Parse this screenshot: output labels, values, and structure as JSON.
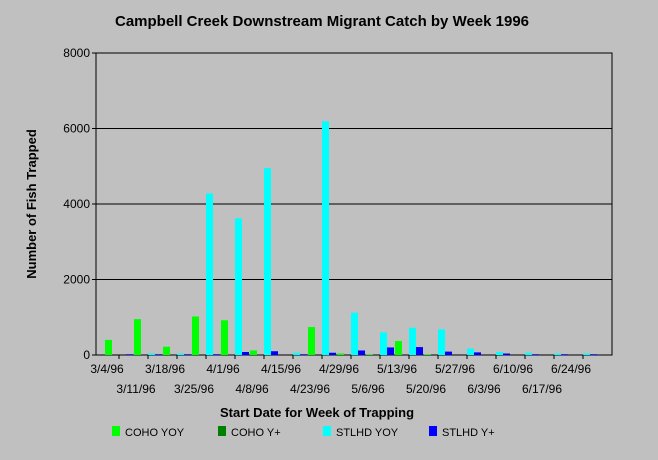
{
  "chart_data": {
    "type": "bar",
    "title": "Campbell Creek Downstream Migrant Catch by Week 1996",
    "xlabel": "Start Date for Week of Trapping",
    "ylabel": "Number of Fish Trapped",
    "ylim": [
      0,
      8000
    ],
    "yticks": [
      "0",
      "2000",
      "4000",
      "6000",
      "8000"
    ],
    "grid": true,
    "legend_position": "bottom",
    "categories": [
      "3/4/96",
      "3/11/96",
      "3/18/96",
      "3/25/96",
      "4/1/96",
      "4/8/96",
      "4/15/96",
      "4/23/96",
      "4/29/96",
      "5/6/96",
      "5/13/96",
      "5/20/96",
      "5/27/96",
      "6/3/96",
      "6/10/96",
      "6/17/96",
      "6/24/96"
    ],
    "series": [
      {
        "name": "COHO YOY",
        "color": "#00ff00",
        "values": [
          400,
          950,
          220,
          1020,
          920,
          120,
          0,
          740,
          40,
          20,
          370,
          20,
          0,
          0,
          0,
          0,
          0
        ]
      },
      {
        "name": "COHO Y+",
        "color": "#008000",
        "values": [
          0,
          0,
          0,
          0,
          0,
          0,
          0,
          0,
          0,
          0,
          0,
          0,
          0,
          0,
          0,
          0,
          0
        ]
      },
      {
        "name": "STLHD YOY",
        "color": "#00ffff",
        "values": [
          0,
          40,
          40,
          4280,
          3620,
          4950,
          60,
          6190,
          1120,
          600,
          720,
          680,
          170,
          80,
          60,
          40,
          40
        ]
      },
      {
        "name": "STLHD Y+",
        "color": "#0000ff",
        "values": [
          20,
          20,
          20,
          20,
          80,
          100,
          20,
          60,
          120,
          200,
          210,
          90,
          70,
          40,
          20,
          20,
          20
        ]
      }
    ]
  }
}
